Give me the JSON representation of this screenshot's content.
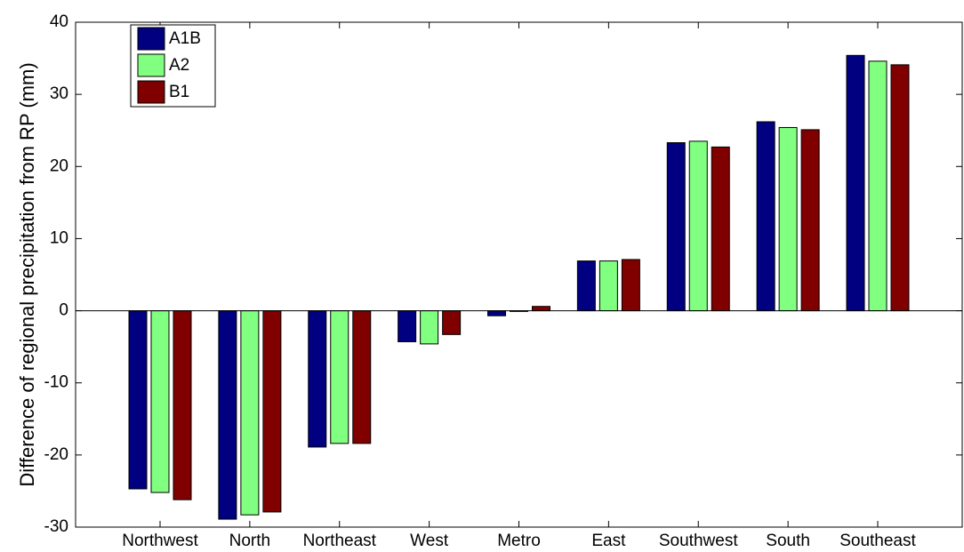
{
  "chart_data": {
    "type": "bar",
    "y_label": "Difference of regional precipitation from RP (mm)",
    "categories": [
      "Northwest",
      "North",
      "Northeast",
      "West",
      "Metro",
      "East",
      "Southwest",
      "South",
      "Southeast"
    ],
    "series": [
      {
        "name": "A1B",
        "color": "#000080",
        "values": [
          -24.7,
          -28.9,
          -18.9,
          -4.3,
          -0.7,
          6.9,
          23.3,
          26.2,
          35.4
        ]
      },
      {
        "name": "A2",
        "color": "#80ff80",
        "values": [
          -25.2,
          -28.3,
          -18.4,
          -4.6,
          -0.1,
          6.9,
          23.5,
          25.4,
          34.6
        ]
      },
      {
        "name": "B1",
        "color": "#800000",
        "values": [
          -26.2,
          -27.9,
          -18.4,
          -3.3,
          0.6,
          7.1,
          22.7,
          25.1,
          34.1
        ]
      }
    ],
    "ylim": [
      -30,
      40
    ],
    "yticks": [
      -30,
      -20,
      -10,
      0,
      10,
      20,
      30,
      40
    ],
    "legend": "upper left"
  }
}
